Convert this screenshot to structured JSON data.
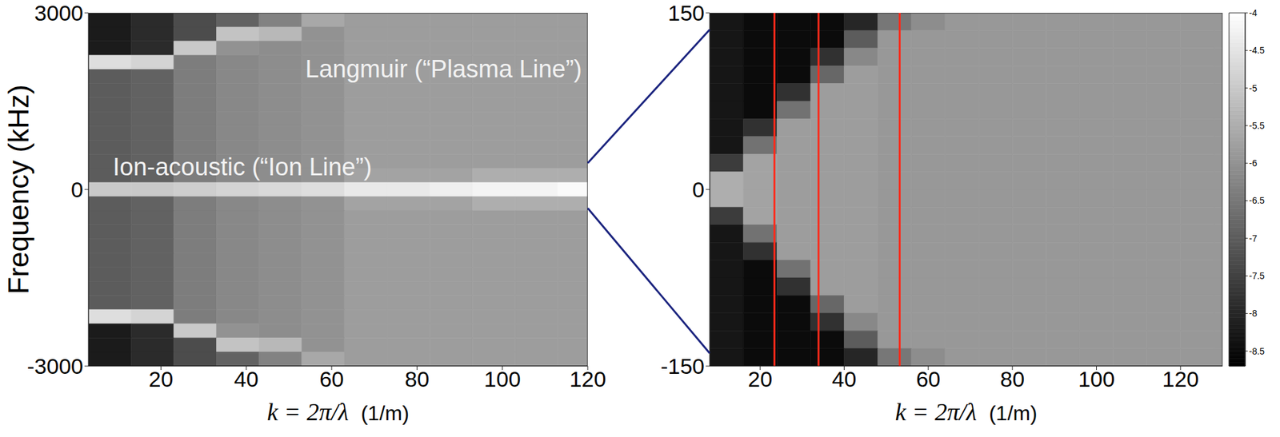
{
  "chart_data": [
    {
      "type": "heatmap",
      "x_label": "k = 2π/λ  (1/m)",
      "y_label": "Frequency (kHz)",
      "xlim": [
        3,
        120
      ],
      "xticks": [
        20,
        40,
        60,
        80,
        100,
        120
      ],
      "ylim": [
        -3000,
        3000
      ],
      "yticks": [
        -3000,
        0,
        3000
      ],
      "annotations": [
        "Langmuir (“Plasma Line”)",
        "Ion-acoustic (“Ion Line”)"
      ],
      "k_edges": [
        3,
        13,
        23,
        33,
        43,
        53,
        63,
        73,
        83,
        93,
        103,
        113,
        120
      ],
      "f_edges": [
        3000,
        2760,
        2520,
        2280,
        2040,
        1800,
        1560,
        1320,
        1080,
        840,
        600,
        360,
        120,
        -120,
        -360,
        -600,
        -840,
        -1080,
        -1320,
        -1560,
        -1800,
        -2040,
        -2280,
        -2520,
        -2760,
        -3000
      ],
      "cells": [
        [
          -8.2,
          -7.9,
          -7.3,
          -6.9,
          -6.3,
          -5.6,
          -5.8,
          -5.8,
          -5.8,
          -5.8,
          -5.8,
          -5.8
        ],
        [
          -8.2,
          -7.9,
          -7.3,
          -5.1,
          -5.3,
          -6.0,
          -5.8,
          -5.8,
          -5.8,
          -5.8,
          -5.8,
          -5.8
        ],
        [
          -8.2,
          -7.9,
          -5.0,
          -6.0,
          -6.1,
          -6.0,
          -5.8,
          -5.8,
          -5.8,
          -5.8,
          -5.8,
          -5.8
        ],
        [
          -4.6,
          -4.8,
          -6.4,
          -6.2,
          -6.1,
          -6.0,
          -5.8,
          -5.8,
          -5.8,
          -5.8,
          -5.8,
          -5.8
        ],
        [
          -7.0,
          -6.9,
          -6.4,
          -6.2,
          -6.1,
          -6.0,
          -5.8,
          -5.8,
          -5.8,
          -5.8,
          -5.8,
          -5.8
        ],
        [
          -7.0,
          -6.9,
          -6.4,
          -6.2,
          -6.1,
          -6.0,
          -5.8,
          -5.8,
          -5.8,
          -5.8,
          -5.8,
          -5.8
        ],
        [
          -7.0,
          -6.9,
          -6.4,
          -6.2,
          -6.1,
          -6.0,
          -5.8,
          -5.8,
          -5.8,
          -5.8,
          -5.8,
          -5.8
        ],
        [
          -7.0,
          -6.9,
          -6.4,
          -6.2,
          -6.1,
          -6.0,
          -5.8,
          -5.8,
          -5.8,
          -5.8,
          -5.8,
          -5.8
        ],
        [
          -7.0,
          -6.9,
          -6.4,
          -6.2,
          -6.1,
          -6.0,
          -5.8,
          -5.8,
          -5.8,
          -5.8,
          -5.8,
          -5.8
        ],
        [
          -7.0,
          -6.9,
          -6.4,
          -6.2,
          -6.1,
          -6.0,
          -5.8,
          -5.8,
          -5.8,
          -5.8,
          -5.8,
          -5.8
        ],
        [
          -7.0,
          -6.9,
          -6.4,
          -6.2,
          -6.1,
          -6.0,
          -5.8,
          -5.8,
          -5.8,
          -5.8,
          -5.8,
          -5.8
        ],
        [
          -7.0,
          -6.9,
          -6.4,
          -6.2,
          -6.1,
          -6.0,
          -5.7,
          -5.7,
          -5.7,
          -5.5,
          -5.5,
          -5.5
        ],
        [
          -5.0,
          -5.0,
          -4.9,
          -4.8,
          -4.7,
          -4.6,
          -4.4,
          -4.4,
          -4.3,
          -4.2,
          -4.2,
          -4.1
        ],
        [
          -7.0,
          -6.9,
          -6.4,
          -6.2,
          -6.1,
          -6.0,
          -5.7,
          -5.7,
          -5.7,
          -5.5,
          -5.5,
          -5.5
        ],
        [
          -7.0,
          -6.9,
          -6.4,
          -6.2,
          -6.1,
          -6.0,
          -5.8,
          -5.8,
          -5.8,
          -5.8,
          -5.8,
          -5.8
        ],
        [
          -7.0,
          -6.9,
          -6.4,
          -6.2,
          -6.1,
          -6.0,
          -5.8,
          -5.8,
          -5.8,
          -5.8,
          -5.8,
          -5.8
        ],
        [
          -7.0,
          -6.9,
          -6.4,
          -6.2,
          -6.1,
          -6.0,
          -5.8,
          -5.8,
          -5.8,
          -5.8,
          -5.8,
          -5.8
        ],
        [
          -7.0,
          -6.9,
          -6.4,
          -6.2,
          -6.1,
          -6.0,
          -5.8,
          -5.8,
          -5.8,
          -5.8,
          -5.8,
          -5.8
        ],
        [
          -7.0,
          -6.9,
          -6.4,
          -6.2,
          -6.1,
          -6.0,
          -5.8,
          -5.8,
          -5.8,
          -5.8,
          -5.8,
          -5.8
        ],
        [
          -7.0,
          -6.9,
          -6.4,
          -6.2,
          -6.1,
          -6.0,
          -5.8,
          -5.8,
          -5.8,
          -5.8,
          -5.8,
          -5.8
        ],
        [
          -7.0,
          -6.9,
          -6.4,
          -6.2,
          -6.1,
          -6.0,
          -5.8,
          -5.8,
          -5.8,
          -5.8,
          -5.8,
          -5.8
        ],
        [
          -4.6,
          -4.8,
          -6.4,
          -6.2,
          -6.1,
          -6.0,
          -5.8,
          -5.8,
          -5.8,
          -5.8,
          -5.8,
          -5.8
        ],
        [
          -8.2,
          -7.9,
          -5.0,
          -6.0,
          -6.1,
          -6.0,
          -5.8,
          -5.8,
          -5.8,
          -5.8,
          -5.8,
          -5.8
        ],
        [
          -8.2,
          -7.9,
          -7.3,
          -5.1,
          -5.3,
          -6.0,
          -5.8,
          -5.8,
          -5.8,
          -5.8,
          -5.8,
          -5.8
        ],
        [
          -8.2,
          -7.9,
          -7.3,
          -6.9,
          -6.3,
          -5.6,
          -5.8,
          -5.8,
          -5.8,
          -5.8,
          -5.8,
          -5.8
        ]
      ]
    },
    {
      "type": "heatmap",
      "x_label": "k = 2π/λ  (1/m)",
      "xlim": [
        8,
        130
      ],
      "xticks": [
        20,
        40,
        60,
        80,
        100,
        120
      ],
      "ylim": [
        -150,
        150
      ],
      "yticks": [
        -150,
        0,
        150
      ],
      "vertical_lines": {
        "k": [
          23.4,
          33.9,
          53.2
        ],
        "color": "#ff2a1a"
      },
      "k_edges": [
        8,
        16,
        24,
        32,
        40,
        48,
        56,
        64,
        72,
        80,
        88,
        96,
        104,
        112,
        120,
        128,
        130
      ],
      "f_edges": [
        150,
        135,
        120,
        105,
        90,
        75,
        60,
        45,
        30,
        15,
        0,
        -15,
        -30,
        -45,
        -60,
        -75,
        -90,
        -105,
        -120,
        -135,
        -150
      ],
      "cells": [
        [
          -8.3,
          -8.5,
          -8.5,
          -8.5,
          -8.0,
          -6.5,
          -6.1,
          -5.9,
          -5.9,
          -5.9,
          -5.9,
          -5.9,
          -5.9,
          -5.9,
          -5.9,
          -5.9
        ],
        [
          -8.3,
          -8.5,
          -8.5,
          -8.5,
          -7.0,
          -5.9,
          -5.9,
          -5.9,
          -5.9,
          -5.9,
          -5.9,
          -5.9,
          -5.9,
          -5.9,
          -5.9,
          -5.9
        ],
        [
          -8.3,
          -8.5,
          -8.5,
          -7.8,
          -6.2,
          -5.9,
          -5.9,
          -5.9,
          -5.9,
          -5.9,
          -5.9,
          -5.9,
          -5.9,
          -5.9,
          -5.9,
          -5.9
        ],
        [
          -8.3,
          -8.5,
          -8.5,
          -6.8,
          -5.8,
          -5.9,
          -5.9,
          -5.9,
          -5.9,
          -5.9,
          -5.9,
          -5.9,
          -5.9,
          -5.9,
          -5.9,
          -5.9
        ],
        [
          -8.3,
          -8.5,
          -7.8,
          -5.8,
          -5.8,
          -5.9,
          -5.9,
          -5.9,
          -5.9,
          -5.9,
          -5.9,
          -5.9,
          -5.9,
          -5.9,
          -5.9,
          -5.9
        ],
        [
          -8.3,
          -8.5,
          -6.6,
          -5.8,
          -5.8,
          -5.9,
          -5.9,
          -5.9,
          -5.9,
          -5.9,
          -5.9,
          -5.9,
          -5.9,
          -5.9,
          -5.9,
          -5.9
        ],
        [
          -8.3,
          -7.8,
          -5.8,
          -5.8,
          -5.8,
          -5.9,
          -5.9,
          -5.9,
          -5.9,
          -5.9,
          -5.9,
          -5.9,
          -5.9,
          -5.9,
          -5.9,
          -5.9
        ],
        [
          -8.3,
          -6.6,
          -5.8,
          -5.8,
          -5.8,
          -5.9,
          -5.9,
          -5.9,
          -5.9,
          -5.9,
          -5.9,
          -5.9,
          -5.9,
          -5.9,
          -5.9,
          -5.9
        ],
        [
          -7.6,
          -5.7,
          -5.8,
          -5.8,
          -5.8,
          -5.9,
          -5.9,
          -5.9,
          -5.9,
          -5.9,
          -5.9,
          -5.9,
          -5.9,
          -5.9,
          -5.9,
          -5.9
        ],
        [
          -5.5,
          -5.7,
          -5.8,
          -5.8,
          -5.8,
          -5.9,
          -5.9,
          -5.9,
          -5.9,
          -5.9,
          -5.9,
          -5.9,
          -5.9,
          -5.9,
          -5.9,
          -5.9
        ],
        [
          -5.5,
          -5.7,
          -5.8,
          -5.8,
          -5.8,
          -5.9,
          -5.9,
          -5.9,
          -5.9,
          -5.9,
          -5.9,
          -5.9,
          -5.9,
          -5.9,
          -5.9,
          -5.9
        ],
        [
          -7.6,
          -5.7,
          -5.8,
          -5.8,
          -5.8,
          -5.9,
          -5.9,
          -5.9,
          -5.9,
          -5.9,
          -5.9,
          -5.9,
          -5.9,
          -5.9,
          -5.9,
          -5.9
        ],
        [
          -8.3,
          -6.6,
          -5.8,
          -5.8,
          -5.8,
          -5.9,
          -5.9,
          -5.9,
          -5.9,
          -5.9,
          -5.9,
          -5.9,
          -5.9,
          -5.9,
          -5.9,
          -5.9
        ],
        [
          -8.3,
          -7.8,
          -5.8,
          -5.8,
          -5.8,
          -5.9,
          -5.9,
          -5.9,
          -5.9,
          -5.9,
          -5.9,
          -5.9,
          -5.9,
          -5.9,
          -5.9,
          -5.9
        ],
        [
          -8.3,
          -8.5,
          -6.6,
          -5.8,
          -5.8,
          -5.9,
          -5.9,
          -5.9,
          -5.9,
          -5.9,
          -5.9,
          -5.9,
          -5.9,
          -5.9,
          -5.9,
          -5.9
        ],
        [
          -8.3,
          -8.5,
          -7.8,
          -5.8,
          -5.8,
          -5.9,
          -5.9,
          -5.9,
          -5.9,
          -5.9,
          -5.9,
          -5.9,
          -5.9,
          -5.9,
          -5.9,
          -5.9
        ],
        [
          -8.3,
          -8.5,
          -8.5,
          -6.8,
          -5.8,
          -5.9,
          -5.9,
          -5.9,
          -5.9,
          -5.9,
          -5.9,
          -5.9,
          -5.9,
          -5.9,
          -5.9,
          -5.9
        ],
        [
          -8.3,
          -8.5,
          -8.5,
          -7.8,
          -6.2,
          -5.9,
          -5.9,
          -5.9,
          -5.9,
          -5.9,
          -5.9,
          -5.9,
          -5.9,
          -5.9,
          -5.9,
          -5.9
        ],
        [
          -8.3,
          -8.5,
          -8.5,
          -8.5,
          -7.0,
          -5.9,
          -5.9,
          -5.9,
          -5.9,
          -5.9,
          -5.9,
          -5.9,
          -5.9,
          -5.9,
          -5.9,
          -5.9
        ],
        [
          -8.3,
          -8.5,
          -8.5,
          -8.5,
          -8.0,
          -6.5,
          -6.1,
          -5.9,
          -5.9,
          -5.9,
          -5.9,
          -5.9,
          -5.9,
          -5.9,
          -5.9,
          -5.9
        ]
      ],
      "colorbar": {
        "range": [
          -8.7,
          -4
        ],
        "ticks": [
          -8.5,
          -8,
          -7.5,
          -7,
          -6.5,
          -6,
          -5.5,
          -5,
          -4.5,
          -4
        ]
      }
    }
  ]
}
